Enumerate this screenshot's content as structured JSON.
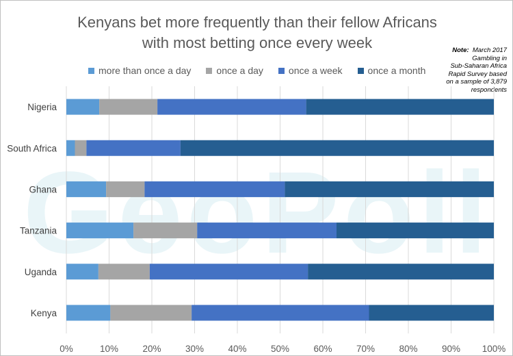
{
  "chart_data": {
    "type": "bar",
    "orientation": "horizontal",
    "stacked": true,
    "title_lines": [
      "Kenyans bet more frequently than their fellow Africans",
      "with most betting once every week"
    ],
    "note_label": "Note:",
    "note_lines": [
      "March 2017",
      "Gambling in",
      "Sub-Saharan Africa",
      "Rapid Survey based",
      "on a sample of 3,879",
      "respondents"
    ],
    "watermark": "GeoPoll",
    "categories": [
      "Nigeria",
      "South Africa",
      "Ghana",
      "Tanzania",
      "Uganda",
      "Kenya"
    ],
    "series": [
      {
        "name": "more than once a day",
        "color": "#5b9bd5",
        "values": [
          7.7,
          2.0,
          9.3,
          15.7,
          7.5,
          10.3
        ]
      },
      {
        "name": "once a day",
        "color": "#a5a5a5",
        "values": [
          13.6,
          2.7,
          9.0,
          14.9,
          12.0,
          19.0
        ]
      },
      {
        "name": "once a week",
        "color": "#4472c4",
        "values": [
          34.8,
          22.0,
          32.8,
          32.6,
          37.0,
          41.5
        ]
      },
      {
        "name": "once a month",
        "color": "#255e91",
        "values": [
          43.9,
          73.3,
          48.9,
          36.8,
          43.5,
          29.2
        ]
      }
    ],
    "xlim": [
      0,
      100
    ],
    "xticks": [
      "0%",
      "10%",
      "20%",
      "30%",
      "40%",
      "50%",
      "60%",
      "70%",
      "80%",
      "90%",
      "100%"
    ],
    "grid": true,
    "legend_position": "top"
  }
}
